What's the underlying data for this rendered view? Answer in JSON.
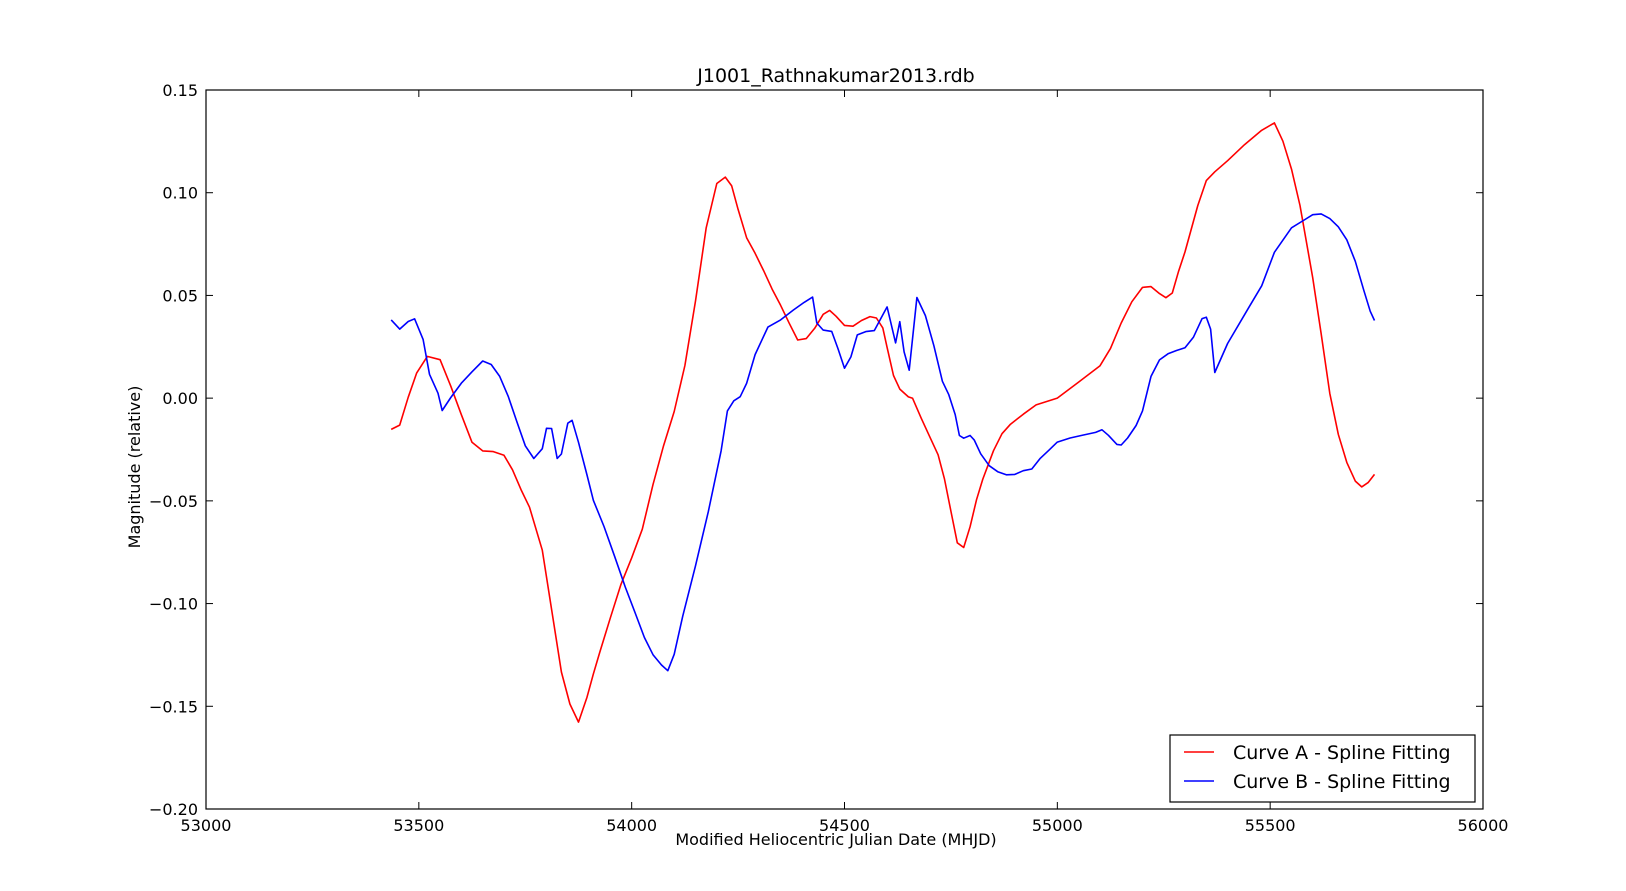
{
  "chart_data": {
    "type": "line",
    "title": "J1001_Rathnakumar2013.rdb",
    "xlabel": "Modified Heliocentric Julian Date (MHJD)",
    "ylabel": "Magnitude (relative)",
    "xlim": [
      53000,
      56000
    ],
    "ylim": [
      -0.2,
      0.15
    ],
    "xticks": [
      53000,
      53500,
      54000,
      54500,
      55000,
      55500,
      56000
    ],
    "xtick_labels": [
      "53000",
      "53500",
      "54000",
      "54500",
      "55000",
      "55500",
      "56000"
    ],
    "yticks": [
      -0.2,
      -0.15,
      -0.1,
      -0.05,
      0.0,
      0.05,
      0.1,
      0.15
    ],
    "ytick_labels": [
      "−0.20",
      "−0.15",
      "−0.10",
      "−0.05",
      "0.00",
      "0.05",
      "0.10",
      "0.15"
    ],
    "grid": false,
    "legend_position": "lower-right",
    "series": [
      {
        "name": "Curve A - Spline Fitting",
        "color": "#ff0000",
        "x": [
          53435,
          53455,
          53475,
          53495,
          53520,
          53550,
          53575,
          53600,
          53625,
          53650,
          53675,
          53700,
          53720,
          53740,
          53760,
          53790,
          53815,
          53835,
          53855,
          53875,
          53895,
          53910,
          53925,
          53950,
          53975,
          54000,
          54025,
          54050,
          54075,
          54100,
          54125,
          54150,
          54175,
          54200,
          54220,
          54235,
          54250,
          54270,
          54290,
          54310,
          54330,
          54350,
          54370,
          54390,
          54410,
          54430,
          54450,
          54465,
          54480,
          54500,
          54520,
          54540,
          54560,
          54575,
          54590,
          54600,
          54615,
          54630,
          54650,
          54660,
          54680,
          54700,
          54720,
          54735,
          54750,
          54765,
          54780,
          54795,
          54810,
          54825,
          54850,
          54870,
          54890,
          54920,
          54950,
          55000,
          55050,
          55100,
          55125,
          55150,
          55175,
          55200,
          55220,
          55240,
          55255,
          55270,
          55285,
          55300,
          55330,
          55350,
          55370,
          55400,
          55440,
          55480,
          55510,
          55530,
          55550,
          55570,
          55600,
          55620,
          55640,
          55660,
          55680,
          55700,
          55715,
          55730,
          55745
        ],
        "y": [
          -0.0152,
          -0.0131,
          0.0004,
          0.0123,
          0.0203,
          0.0187,
          0.0058,
          -0.0081,
          -0.0215,
          -0.0257,
          -0.026,
          -0.0278,
          -0.0349,
          -0.0445,
          -0.0531,
          -0.074,
          -0.1069,
          -0.1333,
          -0.1489,
          -0.1577,
          -0.1456,
          -0.1342,
          -0.1238,
          -0.1069,
          -0.0906,
          -0.0777,
          -0.0638,
          -0.0421,
          -0.0231,
          -0.0065,
          0.0159,
          0.0473,
          0.0829,
          0.1045,
          0.1076,
          0.1033,
          0.0919,
          0.0781,
          0.0705,
          0.0621,
          0.0531,
          0.0452,
          0.0365,
          0.0283,
          0.029,
          0.034,
          0.0408,
          0.0427,
          0.0399,
          0.0354,
          0.035,
          0.0378,
          0.0397,
          0.039,
          0.0342,
          0.0247,
          0.011,
          0.0044,
          0.0006,
          -0.0001,
          -0.0096,
          -0.0186,
          -0.0276,
          -0.0394,
          -0.055,
          -0.0704,
          -0.0727,
          -0.0626,
          -0.0495,
          -0.0394,
          -0.0256,
          -0.0173,
          -0.0127,
          -0.0078,
          -0.0033,
          0.0,
          0.0078,
          0.0157,
          0.0242,
          0.0366,
          0.0469,
          0.0539,
          0.0543,
          0.0509,
          0.0489,
          0.0512,
          0.0618,
          0.0712,
          0.0938,
          0.1059,
          0.1102,
          0.1156,
          0.1234,
          0.1304,
          0.134,
          0.1251,
          0.1115,
          0.0938,
          0.0587,
          0.0312,
          0.0023,
          -0.0176,
          -0.0313,
          -0.0404,
          -0.0432,
          -0.0411,
          -0.0371
        ]
      },
      {
        "name": "Curve B - Spline Fitting",
        "color": "#0000ff",
        "x": [
          53435,
          53455,
          53475,
          53490,
          53510,
          53525,
          53545,
          53555,
          53575,
          53600,
          53625,
          53650,
          53670,
          53690,
          53710,
          53730,
          53750,
          53770,
          53790,
          53800,
          53812,
          53825,
          53835,
          53850,
          53860,
          53875,
          53895,
          53910,
          53935,
          53960,
          53985,
          54010,
          54030,
          54050,
          54070,
          54085,
          54100,
          54120,
          54150,
          54180,
          54210,
          54225,
          54240,
          54255,
          54270,
          54290,
          54320,
          54350,
          54380,
          54405,
          54425,
          54435,
          54450,
          54470,
          54485,
          54500,
          54515,
          54530,
          54550,
          54570,
          54600,
          54620,
          54630,
          54640,
          54652,
          54670,
          54690,
          54710,
          54730,
          54745,
          54760,
          54770,
          54780,
          54795,
          54805,
          54820,
          54840,
          54860,
          54880,
          54900,
          54920,
          54940,
          54960,
          54980,
          55000,
          55030,
          55060,
          55090,
          55105,
          55120,
          55140,
          55150,
          55165,
          55185,
          55200,
          55220,
          55240,
          55260,
          55280,
          55300,
          55320,
          55340,
          55350,
          55360,
          55370,
          55400,
          55450,
          55480,
          55510,
          55550,
          55580,
          55600,
          55620,
          55640,
          55660,
          55680,
          55700,
          55720,
          55735,
          55745
        ],
        "y": [
          0.0381,
          0.0336,
          0.0373,
          0.0386,
          0.0286,
          0.0116,
          0.0024,
          -0.006,
          0.0003,
          0.0073,
          0.0128,
          0.0181,
          0.0164,
          0.0106,
          0.0009,
          -0.0112,
          -0.0232,
          -0.0294,
          -0.0246,
          -0.0147,
          -0.0148,
          -0.0294,
          -0.0272,
          -0.0122,
          -0.0108,
          -0.0215,
          -0.0374,
          -0.0498,
          -0.0625,
          -0.077,
          -0.092,
          -0.1055,
          -0.1165,
          -0.1249,
          -0.1299,
          -0.1327,
          -0.1247,
          -0.1062,
          -0.0816,
          -0.0553,
          -0.0257,
          -0.0062,
          -0.0013,
          0.0007,
          0.0072,
          0.0212,
          0.0346,
          0.0381,
          0.0429,
          0.0466,
          0.0492,
          0.0366,
          0.0331,
          0.0325,
          0.0239,
          0.0146,
          0.0201,
          0.0308,
          0.0324,
          0.0329,
          0.0444,
          0.0269,
          0.0372,
          0.0225,
          0.0136,
          0.049,
          0.0402,
          0.0255,
          0.0082,
          0.0017,
          -0.008,
          -0.0182,
          -0.0195,
          -0.0182,
          -0.0204,
          -0.0271,
          -0.0329,
          -0.0358,
          -0.0373,
          -0.0371,
          -0.0353,
          -0.0345,
          -0.0293,
          -0.0254,
          -0.0214,
          -0.0194,
          -0.018,
          -0.0167,
          -0.0154,
          -0.0181,
          -0.0225,
          -0.0228,
          -0.0194,
          -0.0133,
          -0.0062,
          0.0106,
          0.0186,
          0.0216,
          0.0232,
          0.0245,
          0.0297,
          0.0387,
          0.0394,
          0.0336,
          0.0125,
          0.0266,
          0.0442,
          0.0547,
          0.071,
          0.0829,
          0.0867,
          0.0893,
          0.0897,
          0.0874,
          0.0834,
          0.0771,
          0.0666,
          0.0525,
          0.0423,
          0.0378
        ]
      }
    ]
  }
}
